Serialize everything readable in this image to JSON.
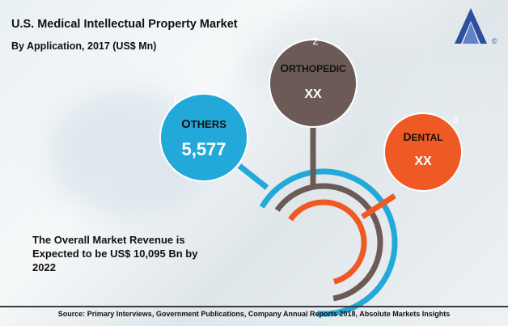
{
  "title": "U.S. Medical Intellectual Property Market",
  "subtitle": "By Application, 2017 (US$ Mn)",
  "note": "The Overall Market Revenue is Expected to be US$ 10,095 Bn by 2022",
  "source": "Source: Primary Interviews, Government Publications, Company Annual Reports 2018, Absolute Markets Insights",
  "logo": {
    "icon": "absolute-markets-insights-logo",
    "color": "#2d4f9e",
    "mark": "©"
  },
  "colors": {
    "others": "#22a9d9",
    "orthopedic": "#6b5a55",
    "dental": "#ef5a24"
  },
  "chart_data": {
    "type": "bubble-infographic",
    "title": "U.S. Medical Intellectual Property Market",
    "subtitle": "By Application, 2017 (US$ Mn)",
    "categories": [
      {
        "number": "1",
        "label_first": "O",
        "label_rest": "THERS",
        "value": "5,577",
        "numeric_value": 5577,
        "color": "#22a9d9"
      },
      {
        "number": "2",
        "label_first": "O",
        "label_rest": "RTHOPEDIC",
        "value": "XX",
        "numeric_value": null,
        "color": "#6b5a55"
      },
      {
        "number": "3",
        "label_first": "D",
        "label_rest": "ENTAL",
        "value": "XX",
        "numeric_value": null,
        "color": "#ef5a24"
      }
    ]
  }
}
